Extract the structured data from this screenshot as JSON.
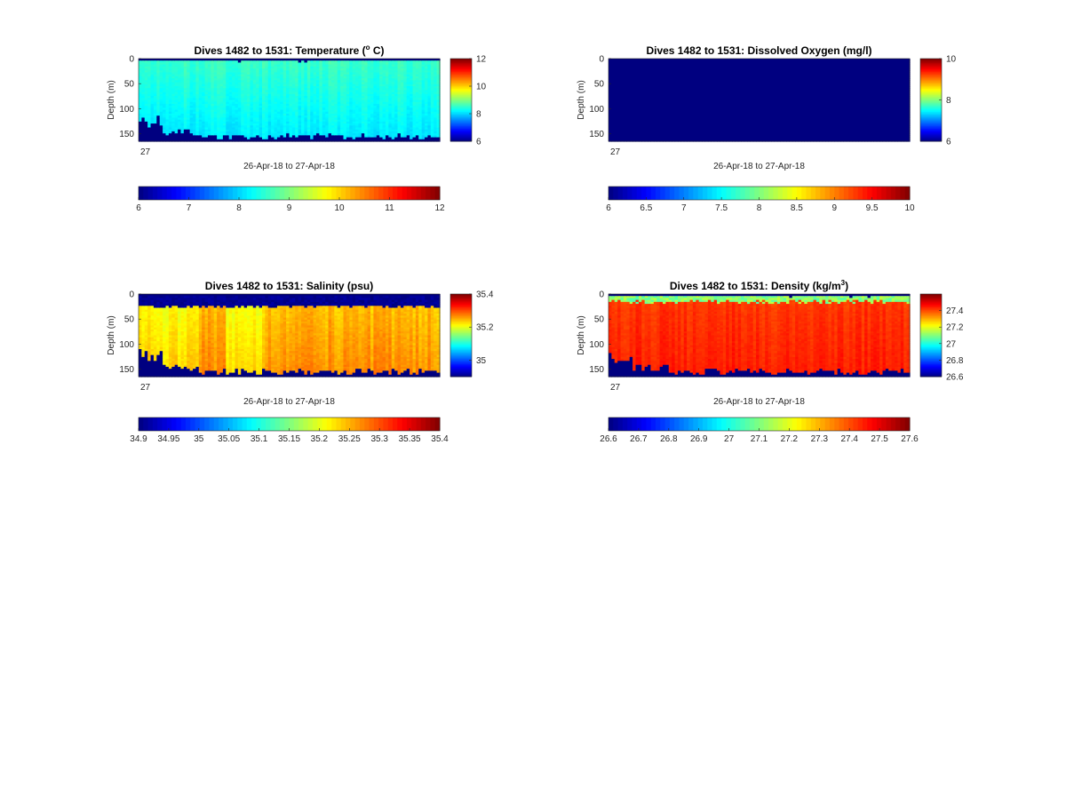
{
  "chart_data": [
    {
      "type": "heatmap",
      "title_parts": [
        "Dives 1482 to 1531: Temperature (",
        "o",
        " C)"
      ],
      "title_sup_index": 1,
      "xlabel": "26-Apr-18 to 27-Apr-18",
      "ylabel": "Depth (m)",
      "x_tick_labels": [
        "27"
      ],
      "y_ticks": [
        "0",
        "50",
        "100",
        "150"
      ],
      "ylim": [
        0,
        165
      ],
      "side_colorbar_ticks": [
        "6",
        "8",
        "10",
        "12"
      ],
      "side_colorbar_range": [
        6,
        12
      ],
      "bottom_colorbar_ticks": [
        "6",
        "7",
        "8",
        "9",
        "10",
        "11",
        "12"
      ],
      "bottom_colorbar_range": [
        6,
        12
      ],
      "colormap": "jet",
      "dives": [
        1482,
        1531
      ],
      "profile": {
        "surface": 8.6,
        "mid": 8.4,
        "deep": 8.1
      },
      "fill_value": 6.0
    },
    {
      "type": "heatmap",
      "title_parts": [
        "Dives 1482 to 1531: Dissolved Oxygen (mg/l)"
      ],
      "xlabel": "26-Apr-18 to 27-Apr-18",
      "ylabel": "Depth (m)",
      "x_tick_labels": [
        "27"
      ],
      "y_ticks": [
        "0",
        "50",
        "100",
        "150"
      ],
      "ylim": [
        0,
        165
      ],
      "side_colorbar_ticks": [
        "6",
        "8",
        "10"
      ],
      "side_colorbar_range": [
        6,
        10
      ],
      "bottom_colorbar_ticks": [
        "6",
        "6.5",
        "7",
        "7.5",
        "8",
        "8.5",
        "9",
        "9.5",
        "10"
      ],
      "bottom_colorbar_range": [
        6,
        10
      ],
      "colormap": "jet",
      "dives": [
        1482,
        1531
      ],
      "uniform_value": 6.0
    },
    {
      "type": "heatmap",
      "title_parts": [
        "Dives 1482 to 1531: Salinity (psu)"
      ],
      "xlabel": "26-Apr-18 to 27-Apr-18",
      "ylabel": "Depth (m)",
      "x_tick_labels": [
        "27"
      ],
      "y_ticks": [
        "0",
        "50",
        "100",
        "150"
      ],
      "ylim": [
        0,
        165
      ],
      "side_colorbar_ticks": [
        "35",
        "35.2",
        "35.4"
      ],
      "side_colorbar_range": [
        34.9,
        35.4
      ],
      "bottom_colorbar_ticks": [
        "34.9",
        "34.95",
        "35",
        "35.05",
        "35.1",
        "35.15",
        "35.2",
        "35.25",
        "35.3",
        "35.35",
        "35.4"
      ],
      "bottom_colorbar_range": [
        34.9,
        35.4
      ],
      "colormap": "jet",
      "dives": [
        1482,
        1531
      ],
      "profile": {
        "surface": 34.9,
        "mid": 35.24,
        "deep": 35.27
      },
      "fill_value": 34.9
    },
    {
      "type": "heatmap",
      "title_parts": [
        "Dives 1482 to 1531: Density (kg/m",
        "3",
        ")"
      ],
      "title_sup_index": 1,
      "xlabel": "26-Apr-18 to 27-Apr-18",
      "ylabel": "Depth (m)",
      "x_tick_labels": [
        "27"
      ],
      "y_ticks": [
        "0",
        "50",
        "100",
        "150"
      ],
      "ylim": [
        0,
        165
      ],
      "side_colorbar_ticks": [
        "26.6",
        "26.8",
        "27",
        "27.2",
        "27.4"
      ],
      "side_colorbar_range": [
        26.6,
        27.6
      ],
      "bottom_colorbar_ticks": [
        "26.6",
        "26.7",
        "26.8",
        "26.9",
        "27",
        "27.1",
        "27.2",
        "27.3",
        "27.4",
        "27.5",
        "27.6"
      ],
      "bottom_colorbar_range": [
        26.6,
        27.6
      ],
      "colormap": "jet",
      "dives": [
        1482,
        1531
      ],
      "profile": {
        "surface": 27.05,
        "mid": 27.42,
        "deep": 27.45
      },
      "fill_value": 26.6
    }
  ]
}
